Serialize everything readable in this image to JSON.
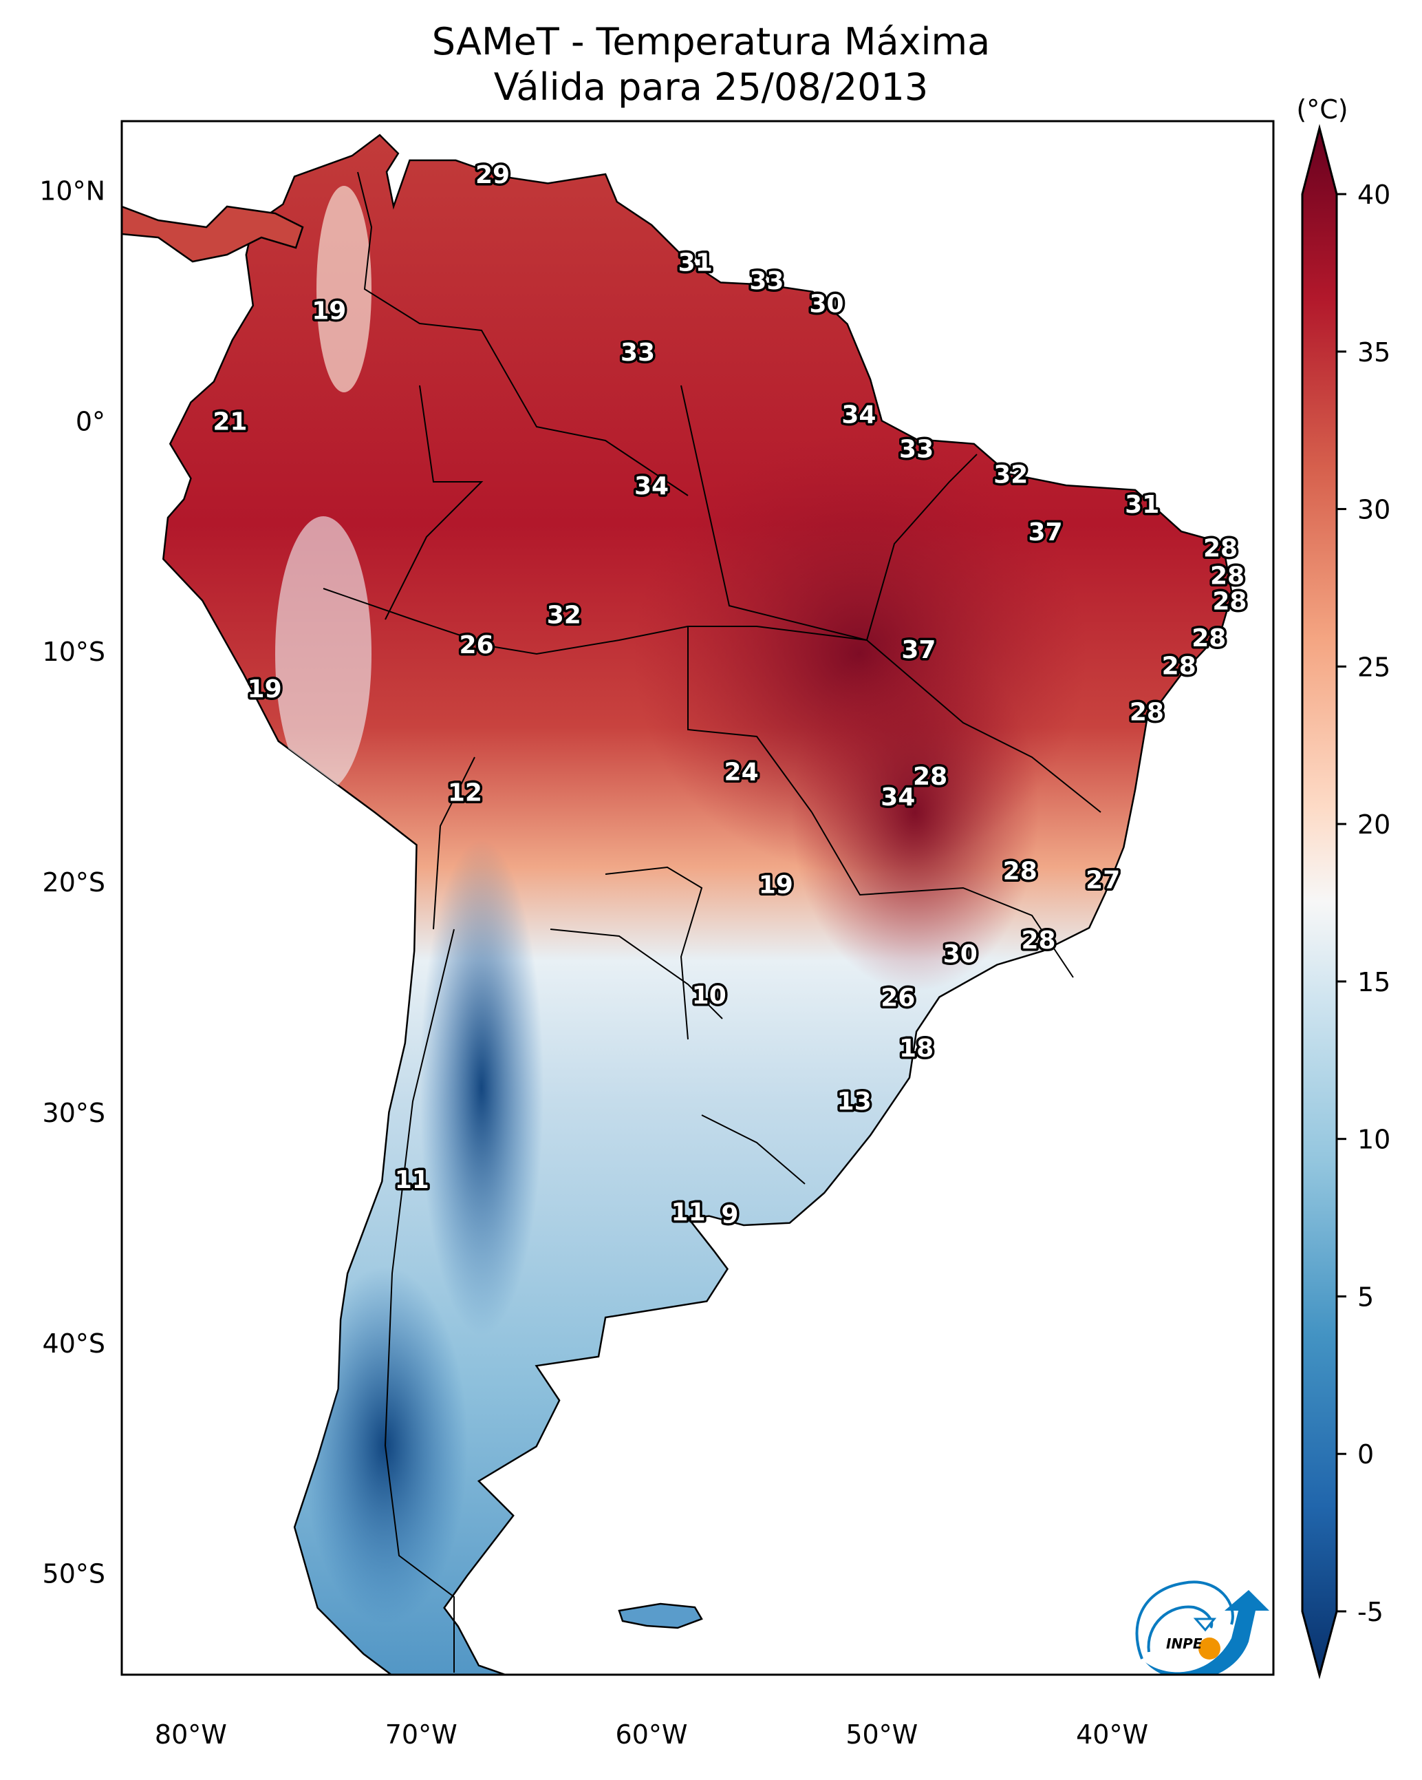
{
  "title": {
    "line1": "SAMeT - Temperatura Máxima",
    "line2": "Válida para 25/08/2013"
  },
  "chart_data": {
    "type": "heatmap",
    "title": "SAMeT - Temperatura Máxima",
    "subtitle": "Válida para 25/08/2013",
    "variable": "Maximum temperature",
    "units": "(°C)",
    "colormap": "RdBu_r",
    "colorbar": {
      "label": "(°C)",
      "range": [
        -5,
        40
      ],
      "extend": "both",
      "ticks": [
        -5,
        0,
        5,
        10,
        15,
        20,
        25,
        30,
        35,
        40
      ],
      "tick_labels": [
        "-5",
        "0",
        "5",
        "10",
        "15",
        "20",
        "25",
        "30",
        "35",
        "40"
      ]
    },
    "lon_range": [
      -83,
      -33
    ],
    "lat_range": [
      -54.4,
      13
    ],
    "x_ticks": [
      -80,
      -70,
      -60,
      -50,
      -40
    ],
    "x_tick_labels": [
      "80°W",
      "70°W",
      "60°W",
      "50°W",
      "40°W"
    ],
    "y_ticks": [
      10,
      0,
      -10,
      -20,
      -30,
      -40,
      -50
    ],
    "y_tick_labels": [
      "10°N",
      "0°",
      "10°S",
      "20°S",
      "30°S",
      "40°S",
      "50°S"
    ],
    "grid": false,
    "stations": [
      {
        "value": 29,
        "lon": -66.9,
        "lat": 10.7
      },
      {
        "value": 19,
        "lon": -74.0,
        "lat": 4.8
      },
      {
        "value": 31,
        "lon": -58.1,
        "lat": 6.9
      },
      {
        "value": 33,
        "lon": -55.0,
        "lat": 6.1
      },
      {
        "value": 30,
        "lon": -52.4,
        "lat": 5.1
      },
      {
        "value": 33,
        "lon": -60.6,
        "lat": 3.0
      },
      {
        "value": 34,
        "lon": -51.0,
        "lat": 0.3
      },
      {
        "value": 21,
        "lon": -78.3,
        "lat": 0.0
      },
      {
        "value": 33,
        "lon": -48.5,
        "lat": -1.2
      },
      {
        "value": 34,
        "lon": -60.0,
        "lat": -2.8
      },
      {
        "value": 32,
        "lon": -44.4,
        "lat": -2.3
      },
      {
        "value": 31,
        "lon": -38.7,
        "lat": -3.6
      },
      {
        "value": 37,
        "lon": -42.9,
        "lat": -4.8
      },
      {
        "value": 28,
        "lon": -35.3,
        "lat": -5.5
      },
      {
        "value": 28,
        "lon": -35.0,
        "lat": -6.7
      },
      {
        "value": 28,
        "lon": -34.9,
        "lat": -7.8
      },
      {
        "value": 32,
        "lon": -63.8,
        "lat": -8.4
      },
      {
        "value": 28,
        "lon": -35.8,
        "lat": -9.4
      },
      {
        "value": 37,
        "lon": -48.4,
        "lat": -9.9
      },
      {
        "value": 26,
        "lon": -67.6,
        "lat": -9.7
      },
      {
        "value": 28,
        "lon": -37.1,
        "lat": -10.6
      },
      {
        "value": 19,
        "lon": -76.8,
        "lat": -11.6
      },
      {
        "value": 28,
        "lon": -38.5,
        "lat": -12.6
      },
      {
        "value": 24,
        "lon": -56.1,
        "lat": -15.2
      },
      {
        "value": 12,
        "lon": -68.1,
        "lat": -16.1
      },
      {
        "value": 28,
        "lon": -47.9,
        "lat": -15.4
      },
      {
        "value": 34,
        "lon": -49.3,
        "lat": -16.3
      },
      {
        "value": 28,
        "lon": -44.0,
        "lat": -19.5
      },
      {
        "value": 27,
        "lon": -40.4,
        "lat": -19.9
      },
      {
        "value": 19,
        "lon": -54.6,
        "lat": -20.1
      },
      {
        "value": 30,
        "lon": -46.6,
        "lat": -23.1
      },
      {
        "value": 28,
        "lon": -43.2,
        "lat": -22.5
      },
      {
        "value": 10,
        "lon": -57.5,
        "lat": -24.9
      },
      {
        "value": 26,
        "lon": -49.3,
        "lat": -25.0
      },
      {
        "value": 18,
        "lon": -48.5,
        "lat": -27.2
      },
      {
        "value": 13,
        "lon": -51.2,
        "lat": -29.5
      },
      {
        "value": 11,
        "lon": -70.4,
        "lat": -32.9
      },
      {
        "value": 11,
        "lon": -58.4,
        "lat": -34.3
      },
      {
        "value": 9,
        "lon": -56.6,
        "lat": -34.4
      }
    ]
  },
  "logo": {
    "text": "INPE",
    "colors": {
      "blue": "#0a7bc1",
      "orange": "#f29400"
    }
  }
}
